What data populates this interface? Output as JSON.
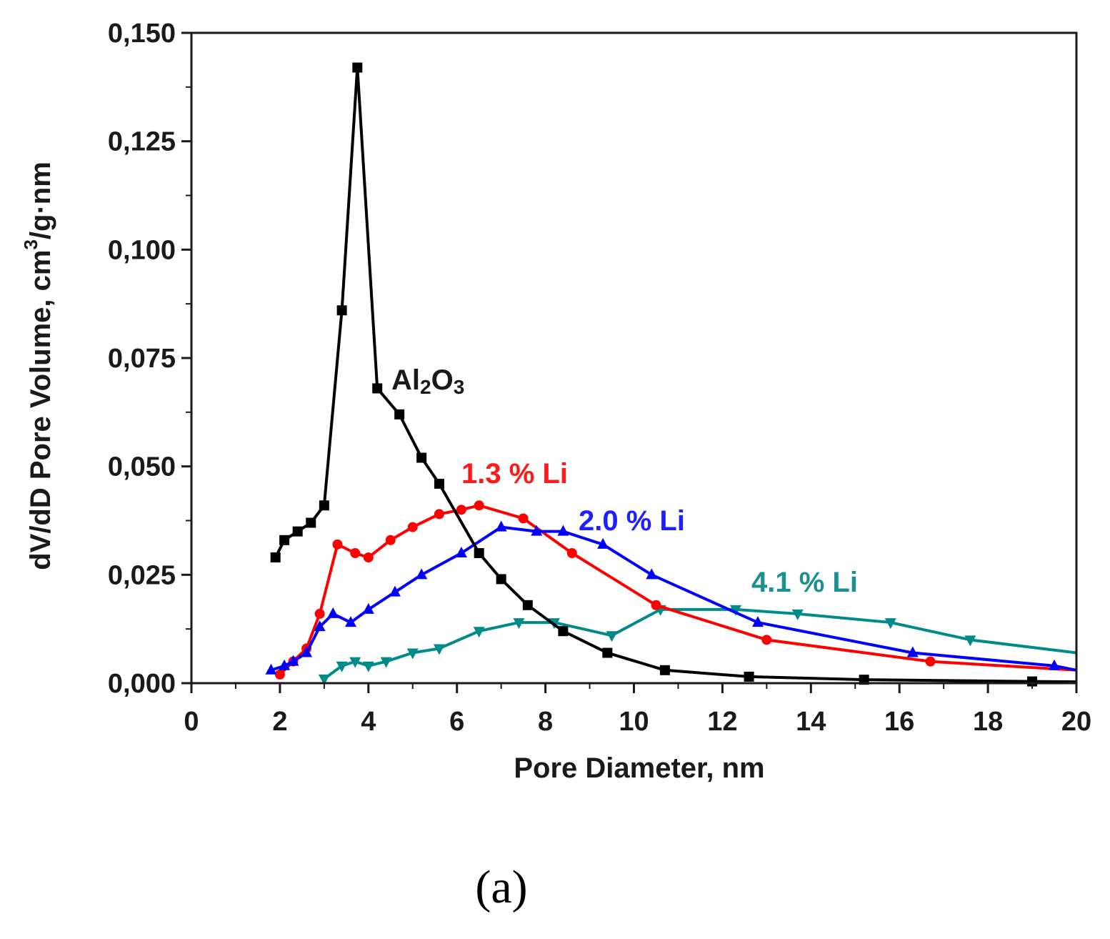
{
  "caption": "(a)",
  "chart_data": {
    "type": "line",
    "title": "",
    "xlabel": "Pore Diameter, nm",
    "ylabel": "dV/dD Pore Volume, cm",
    "ylabel_sup": "3",
    "ylabel_tail": "/g·nm",
    "xlim": [
      0,
      20
    ],
    "ylim": [
      0,
      0.15
    ],
    "x_ticks": [
      "0",
      "2",
      "4",
      "6",
      "8",
      "10",
      "12",
      "14",
      "16",
      "18",
      "20"
    ],
    "y_ticks": [
      "0,000",
      "0,025",
      "0,050",
      "0,075",
      "0,100",
      "0,125",
      "0,150"
    ],
    "series": [
      {
        "name": "Al2O3",
        "label_main": "Al",
        "label_sub1": "2",
        "label_mid": "O",
        "label_sub2": "3",
        "color": "#000000",
        "marker": "square",
        "x": [
          1.9,
          2.1,
          2.4,
          2.7,
          3.0,
          3.4,
          3.75,
          4.2,
          4.7,
          5.2,
          5.6,
          6.5,
          7.0,
          7.6,
          8.4,
          9.4,
          10.7,
          12.6,
          15.2,
          19.0,
          20.0
        ],
        "y": [
          0.029,
          0.033,
          0.035,
          0.037,
          0.041,
          0.086,
          0.142,
          0.068,
          0.062,
          0.052,
          0.046,
          0.03,
          0.024,
          0.018,
          0.012,
          0.007,
          0.003,
          0.0015,
          0.0008,
          0.0004,
          0.0003
        ]
      },
      {
        "name": "1.3 % Li",
        "color": "#ff0000",
        "marker": "circle",
        "x": [
          2.0,
          2.3,
          2.6,
          2.9,
          3.3,
          3.7,
          4.0,
          4.5,
          5.0,
          5.6,
          6.1,
          6.5,
          7.5,
          8.6,
          10.5,
          13.0,
          16.7,
          20.0
        ],
        "y": [
          0.002,
          0.005,
          0.008,
          0.016,
          0.032,
          0.03,
          0.029,
          0.033,
          0.036,
          0.039,
          0.04,
          0.041,
          0.038,
          0.03,
          0.018,
          0.01,
          0.005,
          0.003
        ]
      },
      {
        "name": "2.0 % Li",
        "color": "#0000ff",
        "marker": "triangle-up",
        "x": [
          1.8,
          2.1,
          2.3,
          2.6,
          2.9,
          3.2,
          3.6,
          4.0,
          4.6,
          5.2,
          6.1,
          7.0,
          7.8,
          8.4,
          9.3,
          10.4,
          12.8,
          16.3,
          19.5,
          20.0
        ],
        "y": [
          0.003,
          0.004,
          0.005,
          0.007,
          0.013,
          0.016,
          0.014,
          0.017,
          0.021,
          0.025,
          0.03,
          0.036,
          0.035,
          0.035,
          0.032,
          0.025,
          0.014,
          0.007,
          0.004,
          0.003
        ]
      },
      {
        "name": "4.1 % Li",
        "color": "#008b8b",
        "marker": "triangle-down",
        "x": [
          3.0,
          3.4,
          3.7,
          4.0,
          4.4,
          5.0,
          5.6,
          6.5,
          7.4,
          8.2,
          9.5,
          10.6,
          12.3,
          13.7,
          15.8,
          17.6,
          20.0
        ],
        "y": [
          0.001,
          0.004,
          0.005,
          0.004,
          0.005,
          0.007,
          0.008,
          0.012,
          0.014,
          0.014,
          0.011,
          0.017,
          0.017,
          0.016,
          0.014,
          0.01,
          0.007
        ]
      }
    ]
  }
}
